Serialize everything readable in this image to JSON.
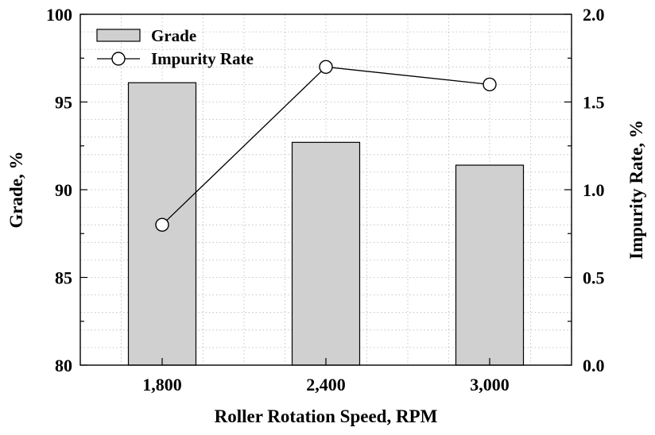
{
  "chart_data": {
    "type": "bar",
    "categories": [
      "1,800",
      "2,400",
      "3,000"
    ],
    "xlabel": "Roller Rotation Speed, RPM",
    "y_left": {
      "label": "Grade, %",
      "ylim": [
        80,
        100
      ],
      "ticks": [
        80,
        85,
        90,
        95,
        100
      ],
      "tick_labels": [
        "80",
        "85",
        "90",
        "95",
        "100"
      ]
    },
    "y_right": {
      "label": "Impurity Rate, %",
      "ylim": [
        0,
        2
      ],
      "ticks": [
        0,
        0.5,
        1,
        1.5,
        2
      ],
      "tick_labels": [
        "0.0",
        "0.5",
        "1.0",
        "1.5",
        "2.0"
      ]
    },
    "series": [
      {
        "name": "Grade",
        "kind": "bar",
        "axis": "left",
        "values": [
          96.1,
          92.7,
          91.4
        ],
        "color": "#d0d0d0"
      },
      {
        "name": "Impurity Rate",
        "kind": "line",
        "axis": "right",
        "values": [
          0.8,
          1.7,
          1.6
        ],
        "marker": "open-circle",
        "color": "#000000"
      }
    ],
    "grid": true,
    "legend": {
      "position": "top-left"
    }
  }
}
